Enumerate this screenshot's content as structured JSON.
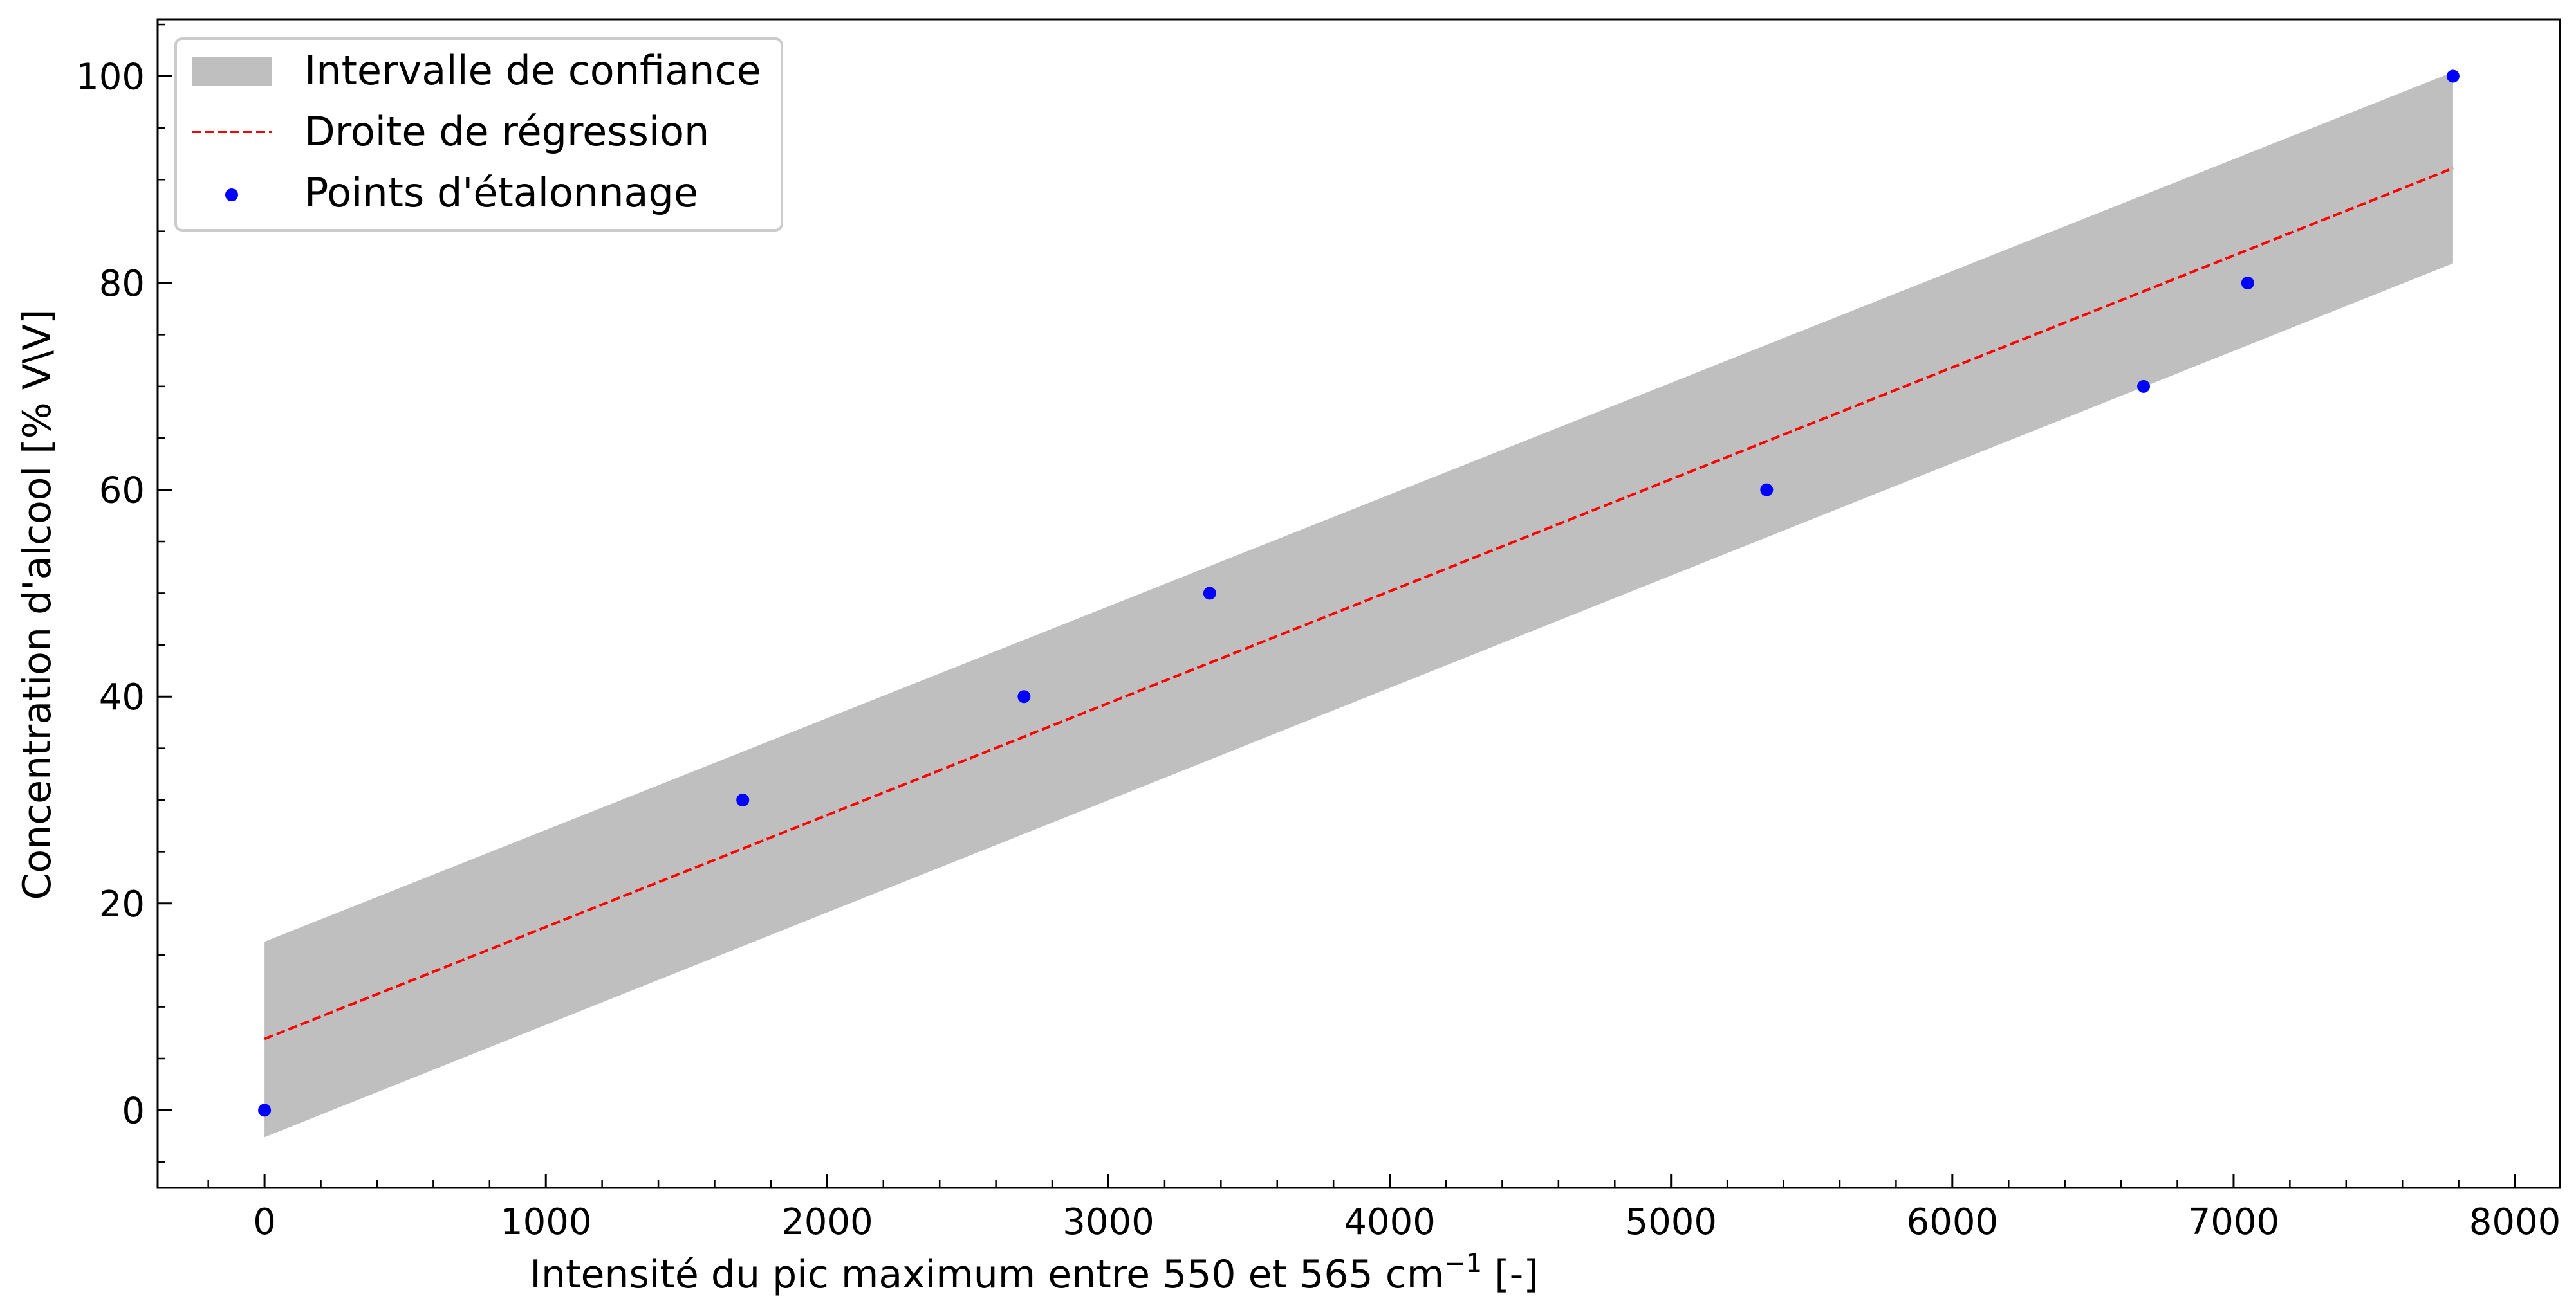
{
  "chart_data": {
    "type": "scatter",
    "xlabel": "Intensité du pic maximum entre 550 et 565 cm",
    "xlabel_superscript": "−1",
    "xlabel_suffix": " [-]",
    "ylabel": "Concentration d'alcool [% V\\V]",
    "xlim": [
      -380,
      8160
    ],
    "ylim": [
      -7.5,
      105.5
    ],
    "xticks": [
      0,
      1000,
      2000,
      3000,
      4000,
      5000,
      6000,
      7000,
      8000
    ],
    "xtick_labels": [
      "0",
      "1000",
      "2000",
      "3000",
      "4000",
      "5000",
      "6000",
      "7000",
      "8000"
    ],
    "yticks": [
      0,
      20,
      40,
      60,
      80,
      100
    ],
    "ytick_labels": [
      "0",
      "20",
      "40",
      "60",
      "80",
      "100"
    ],
    "grid": false,
    "legend_position": "top-left",
    "legend": [
      {
        "name": "Intervalle de confiance",
        "kind": "band",
        "color": "#bfbfbf"
      },
      {
        "name": "Droite de régression",
        "kind": "line",
        "color": "#ff0000"
      },
      {
        "name": "Points d'étalonnage",
        "kind": "scatter",
        "color": "#0000ff"
      }
    ],
    "series": [
      {
        "name": "Points d'étalonnage",
        "kind": "scatter",
        "x": [
          0,
          1700,
          2700,
          3360,
          5340,
          6680,
          7050,
          7780
        ],
        "y": [
          0,
          30,
          40,
          50,
          60,
          70,
          80,
          100
        ]
      },
      {
        "name": "Droite de régression",
        "kind": "line",
        "x": [
          0,
          7780
        ],
        "y": [
          6.9,
          91.1
        ]
      },
      {
        "name": "Intervalle de confiance",
        "kind": "band",
        "x": [
          0,
          7780
        ],
        "lower": [
          -2.6,
          81.9
        ],
        "upper": [
          16.3,
          100.4
        ]
      }
    ]
  }
}
